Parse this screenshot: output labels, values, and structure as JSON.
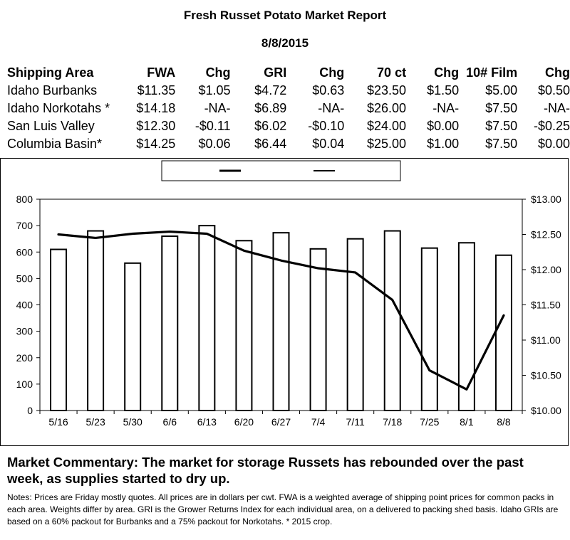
{
  "header": {
    "title": "Fresh Russet Potato Market Report",
    "date": "8/8/2015"
  },
  "price_table": {
    "columns": [
      "Shipping Area",
      "FWA",
      "Chg",
      "GRI",
      "Chg",
      "70 ct",
      "Chg",
      "10# Film",
      "Chg"
    ],
    "rows": [
      [
        "Idaho Burbanks",
        "$11.35",
        "$1.05",
        "$4.72",
        "$0.63",
        "$23.50",
        "$1.50",
        "$5.00",
        "$0.50"
      ],
      [
        "Idaho Norkotahs *",
        "$14.18",
        "-NA-",
        "$6.89",
        "-NA-",
        "$26.00",
        "-NA-",
        "$7.50",
        "-NA-"
      ],
      [
        "San Luis Valley",
        "$12.30",
        "-$0.11",
        "$6.02",
        "-$0.10",
        "$24.00",
        "$0.00",
        "$7.50",
        "-$0.25"
      ],
      [
        "Columbia Basin*",
        "$14.25",
        "$0.06",
        "$6.44",
        "$0.04",
        "$25.00",
        "$1.00",
        "$7.50",
        "$0.00"
      ]
    ]
  },
  "chart_data": {
    "type": "bar",
    "categories": [
      "5/16",
      "5/23",
      "5/30",
      "6/6",
      "6/13",
      "6/20",
      "6/27",
      "7/4",
      "7/11",
      "7/18",
      "7/25",
      "8/1",
      "8/8"
    ],
    "series": [
      {
        "kind": "bar",
        "axis": "left",
        "values": [
          610,
          680,
          558,
          660,
          700,
          643,
          673,
          612,
          650,
          680,
          615,
          635,
          588
        ]
      },
      {
        "kind": "line",
        "axis": "right",
        "values": [
          12.5,
          12.45,
          12.51,
          12.54,
          12.51,
          12.27,
          12.13,
          12.02,
          11.96,
          11.57,
          10.57,
          10.3,
          11.35
        ]
      }
    ],
    "left_axis": {
      "min": 0,
      "max": 800,
      "ticks": [
        "0",
        "100",
        "200",
        "300",
        "400",
        "500",
        "600",
        "700",
        "800"
      ]
    },
    "right_axis": {
      "min": 10.0,
      "max": 13.0,
      "ticks": [
        "$10.00",
        "$10.50",
        "$11.00",
        "$11.50",
        "$12.00",
        "$12.50",
        "$13.00"
      ]
    },
    "legend": {
      "position": "top",
      "entries": [
        "",
        ""
      ]
    },
    "grid": false
  },
  "commentary": "Market Commentary: The market for storage Russets has rebounded over the past week, as supplies started to dry up.",
  "notes": "Notes: Prices are Friday mostly quotes. All prices are in dollars per cwt. FWA is a weighted average of shipping point prices for  common packs in each area. Weights differ by area. GRI is the Grower Returns Index for each individual area, on a delivered to packing shed basis. Idaho GRIs are based on a 60% packout for Burbanks and a 75% packout for Norkotahs.          * 2015 crop."
}
